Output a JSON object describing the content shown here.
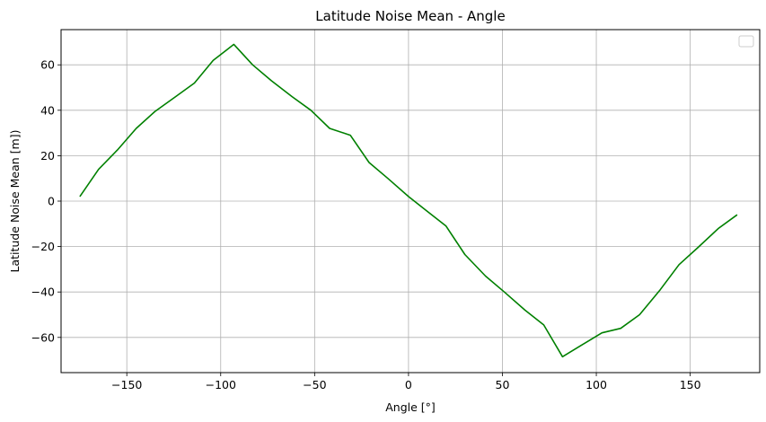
{
  "chart_data": {
    "type": "line",
    "title": "Latitude Noise Mean - Angle",
    "xlabel": "Angle [°]",
    "ylabel": "Latitude Noise Mean [m])",
    "xlim": [
      -185,
      187
    ],
    "ylim": [
      -75.5,
      75.5
    ],
    "xticks": [
      -150,
      -100,
      -50,
      0,
      50,
      100,
      150
    ],
    "yticks": [
      -60,
      -40,
      -20,
      0,
      20,
      40,
      60
    ],
    "xtick_labels": [
      "−150",
      "−100",
      "−50",
      "0",
      "50",
      "100",
      "150"
    ],
    "ytick_labels": [
      "−60",
      "−40",
      "−20",
      "0",
      "20",
      "40",
      "60"
    ],
    "grid": true,
    "legend": "top-right (empty)",
    "line_color": "#008000",
    "series": [
      {
        "x": [
          -175,
          -165,
          -155,
          -145,
          -135,
          -124,
          -114,
          -104,
          -93,
          -83,
          -73,
          -62,
          -52,
          -42,
          -31,
          -21,
          -11,
          0,
          10,
          20,
          30,
          41,
          51,
          62,
          72,
          82,
          92,
          103,
          113,
          123,
          134,
          144,
          154,
          165,
          175
        ],
        "y": [
          2,
          14,
          22.5,
          32,
          39.5,
          46,
          52,
          62,
          69,
          60,
          53,
          46,
          40,
          32,
          29,
          17,
          10,
          2,
          -4.5,
          -11,
          -23.5,
          -33,
          -40,
          -48,
          -54.5,
          -68.5,
          -63.5,
          -58,
          -56,
          -50,
          -39,
          -28,
          -20.5,
          -12,
          -6
        ]
      }
    ]
  }
}
